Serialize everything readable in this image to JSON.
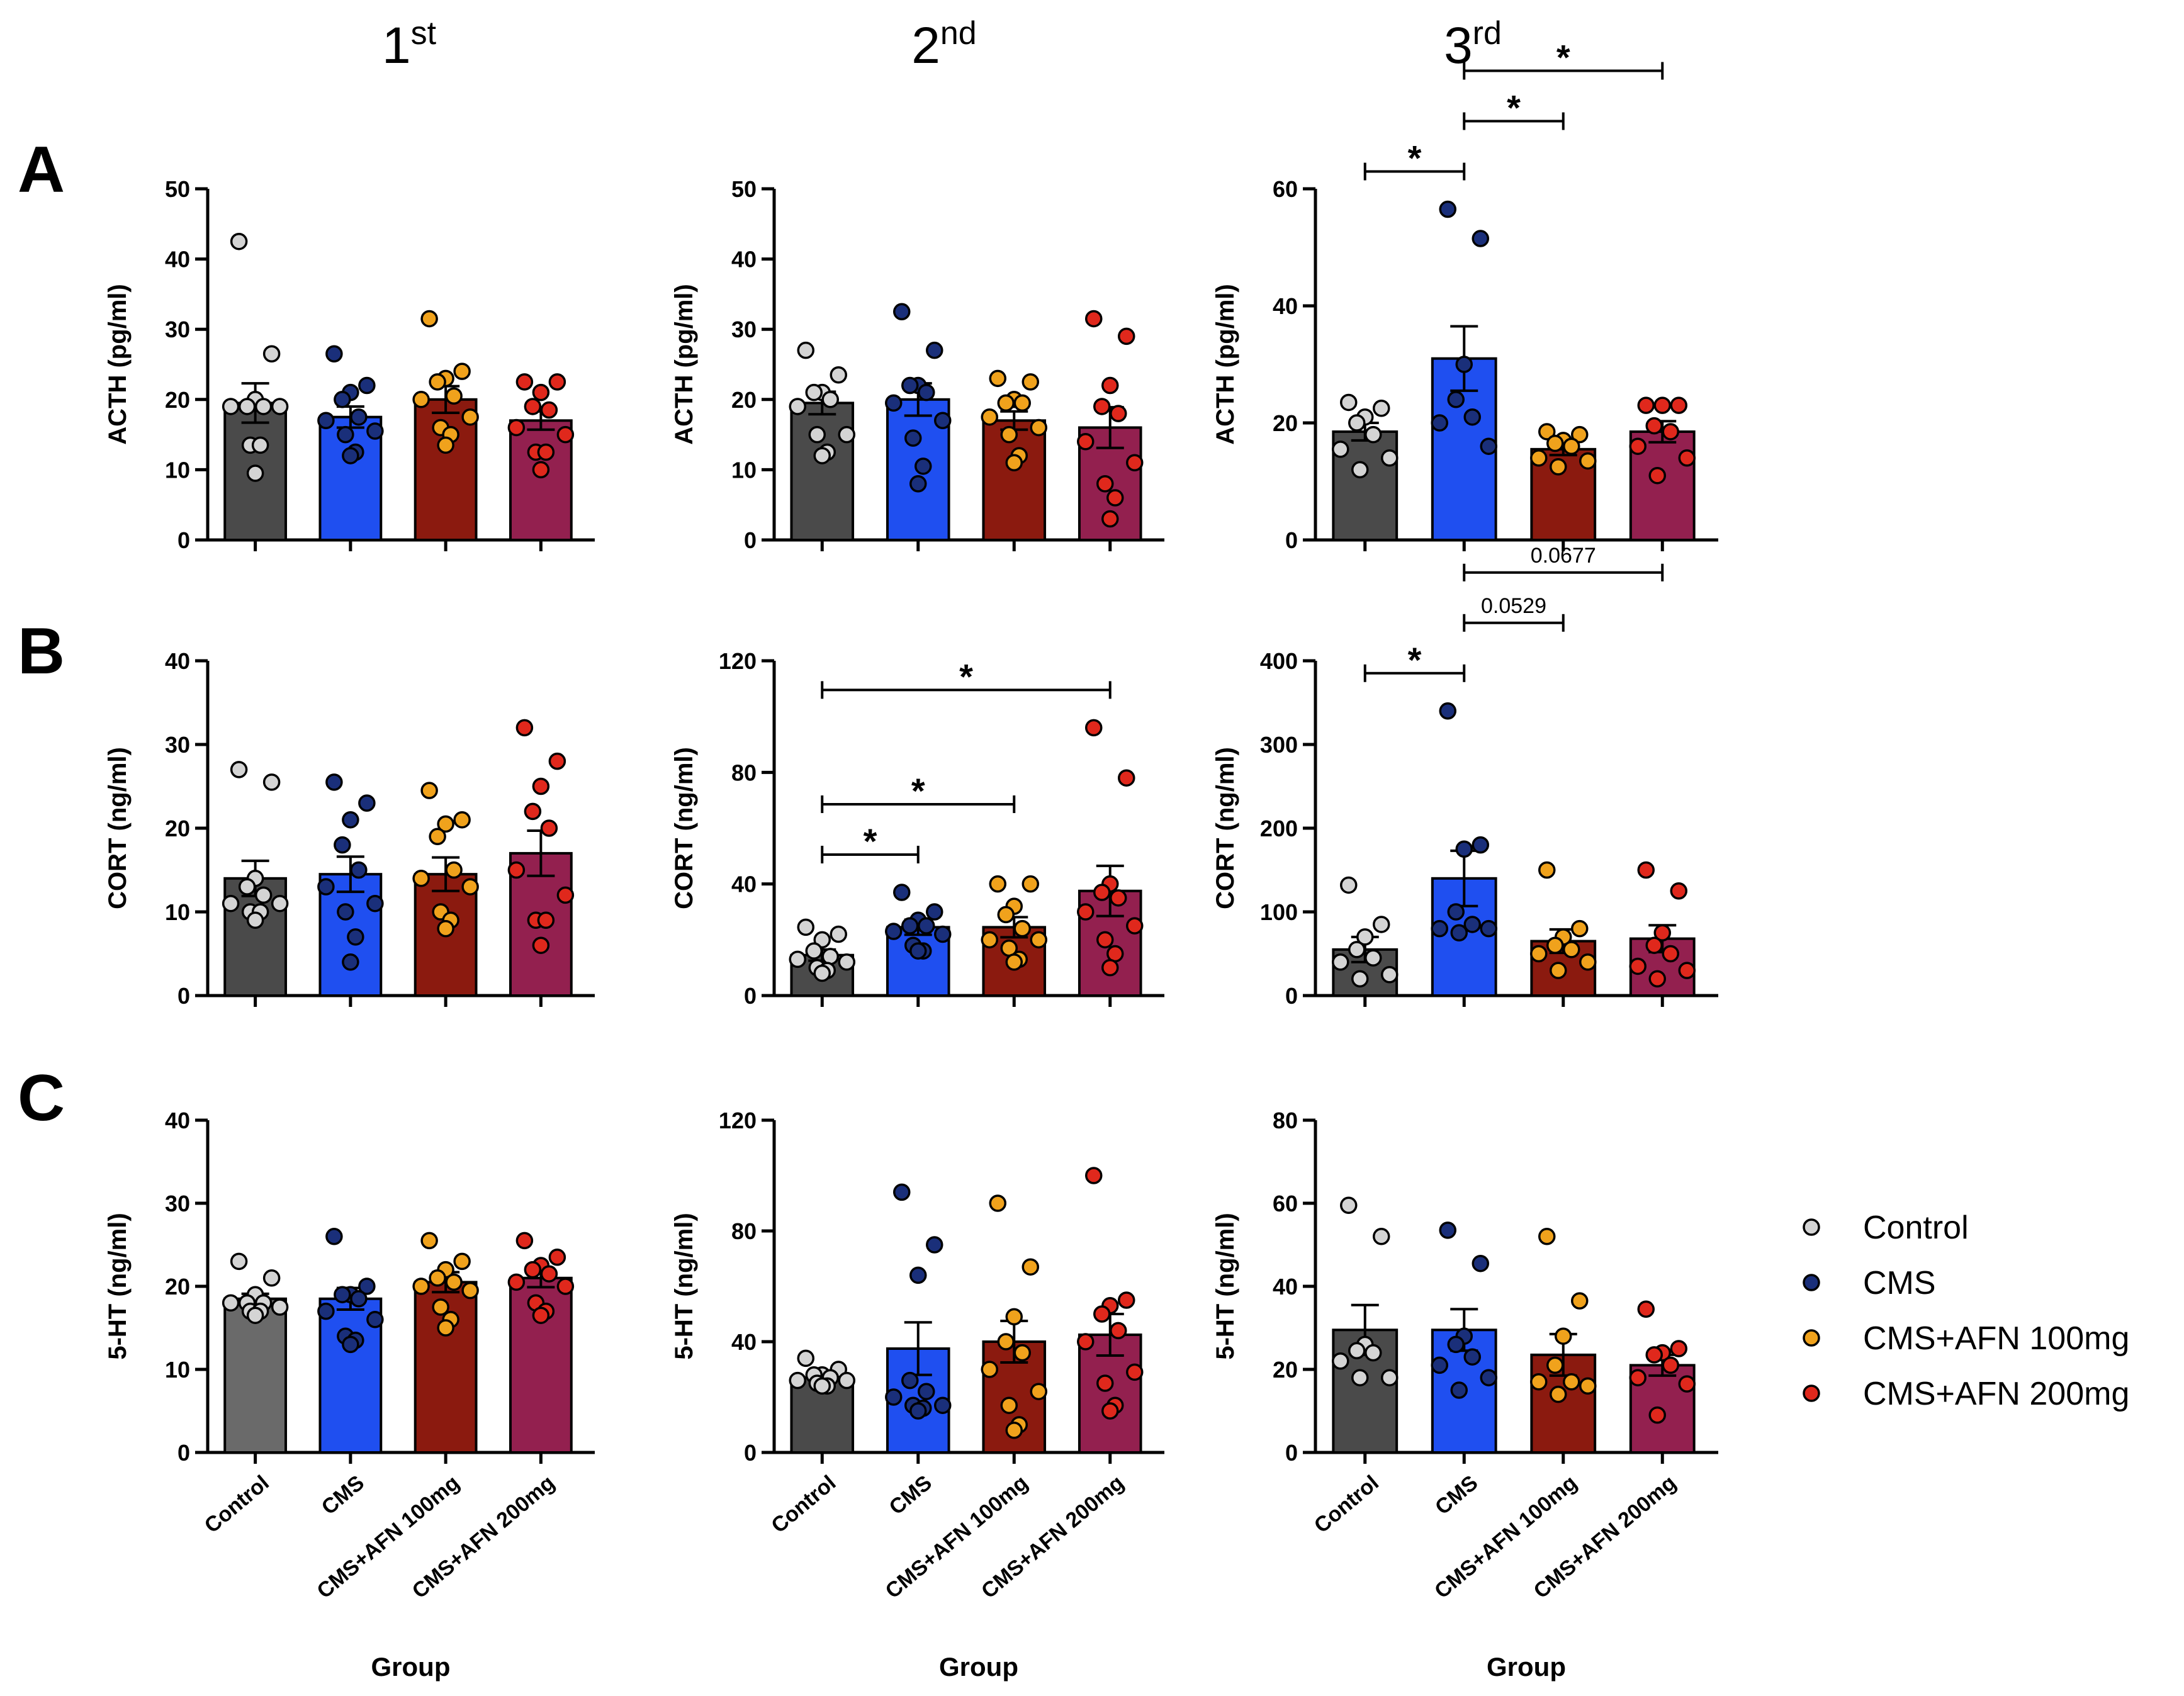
{
  "figure": {
    "columns": [
      {
        "main": "1",
        "sup": "st"
      },
      {
        "main": "2",
        "sup": "nd"
      },
      {
        "main": "3",
        "sup": "rd"
      }
    ],
    "rows": [
      "A",
      "B",
      "C"
    ]
  },
  "groups": [
    "Control",
    "CMS",
    "CMS+AFN 100mg",
    "CMS+AFN 200mg"
  ],
  "colors": {
    "bars": [
      "#4a4a4a",
      "#1f4ff0",
      "#8b1a0f",
      "#93204f"
    ],
    "bar_control_c1": "#6a6a6a",
    "dots": [
      "#d4d4d4",
      "#1a2f7a",
      "#f0a21c",
      "#e0281c"
    ]
  },
  "legend": [
    "Control",
    "CMS",
    "CMS+AFN 100mg",
    "CMS+AFN 200mg"
  ],
  "chart_data": [
    {
      "type": "bar",
      "row": "A",
      "col": 0,
      "title": "",
      "ylabel": "ACTH (pg/ml)",
      "ylim": [
        0,
        50
      ],
      "yticks": [
        0,
        10,
        20,
        30,
        40,
        50
      ],
      "xlabel": "",
      "categories": [],
      "means": [
        19.5,
        17.5,
        20,
        17
      ],
      "sem": [
        2.8,
        1.5,
        1.9,
        1.3
      ],
      "points": [
        [
          42.5,
          26.5,
          20,
          19,
          19,
          19,
          19,
          13.5,
          13.5,
          9.5
        ],
        [
          26.5,
          22,
          21,
          20,
          17.5,
          17,
          15.5,
          15,
          12.5,
          12
        ],
        [
          31.5,
          24,
          23,
          22.5,
          20.5,
          20,
          17.5,
          16,
          15,
          13.5
        ],
        [
          22.5,
          22.5,
          21,
          19,
          18.5,
          16,
          15,
          12.5,
          12.5,
          10
        ]
      ],
      "significance": []
    },
    {
      "type": "bar",
      "row": "A",
      "col": 1,
      "title": "",
      "ylabel": "ACTH (pg/ml)",
      "ylim": [
        0,
        50
      ],
      "yticks": [
        0,
        10,
        20,
        30,
        40,
        50
      ],
      "xlabel": "",
      "categories": [],
      "means": [
        19.5,
        20,
        17,
        16
      ],
      "sem": [
        1.6,
        2.3,
        1.3,
        2.9
      ],
      "points": [
        [
          27,
          23.5,
          21,
          21,
          20,
          19,
          15,
          15,
          12.5,
          12
        ],
        [
          32.5,
          27,
          22,
          22,
          21,
          19.5,
          17,
          14.5,
          10.5,
          8
        ],
        [
          23,
          22.5,
          20,
          19.5,
          19.5,
          17.5,
          16,
          15,
          12,
          11
        ],
        [
          31.5,
          29,
          22,
          19,
          18,
          14,
          11,
          8,
          6,
          3
        ]
      ],
      "significance": []
    },
    {
      "type": "bar",
      "row": "A",
      "col": 2,
      "title": "",
      "ylabel": "ACTH (pg/ml)",
      "ylim": [
        0,
        60
      ],
      "yticks": [
        0,
        20,
        40,
        60
      ],
      "xlabel": "",
      "categories": [],
      "means": [
        18.5,
        31,
        15.5,
        18.5
      ],
      "sem": [
        1.5,
        5.5,
        1,
        1.8
      ],
      "points": [
        [
          23.5,
          22.5,
          21,
          20,
          18,
          15.5,
          14,
          12
        ],
        [
          56.5,
          51.5,
          30,
          24,
          21,
          20,
          16
        ],
        [
          18.5,
          18,
          17,
          16.5,
          16,
          14,
          13.5,
          12.5
        ],
        [
          23,
          23,
          23,
          19.5,
          18.5,
          16,
          14,
          11
        ]
      ],
      "significance": [
        {
          "from": 0,
          "to": 1,
          "label": "*"
        },
        {
          "from": 1,
          "to": 2,
          "label": "*"
        },
        {
          "from": 1,
          "to": 3,
          "label": "*"
        }
      ]
    },
    {
      "type": "bar",
      "row": "B",
      "col": 0,
      "title": "",
      "ylabel": "CORT (ng/ml)",
      "ylim": [
        0,
        40
      ],
      "yticks": [
        0,
        10,
        20,
        30,
        40
      ],
      "xlabel": "",
      "categories": [],
      "means": [
        14,
        14.5,
        14.5,
        17
      ],
      "sem": [
        2.1,
        2.1,
        2,
        2.7
      ],
      "points": [
        [
          27,
          25.5,
          14,
          13,
          12,
          11,
          11,
          10,
          10,
          9
        ],
        [
          25.5,
          23,
          21,
          18,
          15,
          13,
          11,
          10,
          7,
          4
        ],
        [
          24.5,
          21,
          20.5,
          19,
          15,
          14,
          13,
          10,
          9,
          8
        ],
        [
          32,
          28,
          25,
          22,
          20,
          15,
          12,
          9,
          9,
          6
        ]
      ],
      "significance": []
    },
    {
      "type": "bar",
      "row": "B",
      "col": 1,
      "title": "",
      "ylabel": "CORT (ng/ml)",
      "ylim": [
        0,
        120
      ],
      "yticks": [
        0,
        40,
        80,
        120
      ],
      "xlabel": "",
      "categories": [],
      "means": [
        14.5,
        24.5,
        24.5,
        37.5
      ],
      "sem": [
        2,
        2.7,
        3.6,
        9
      ],
      "points": [
        [
          24.5,
          22,
          20,
          16,
          14,
          13,
          12,
          10,
          9,
          8
        ],
        [
          37,
          30,
          27,
          25,
          25,
          23,
          22,
          18,
          16,
          16
        ],
        [
          40,
          40,
          32,
          29,
          24,
          20,
          20,
          17,
          13,
          12
        ],
        [
          96,
          78,
          40,
          37,
          35,
          30,
          25,
          20,
          15,
          10
        ]
      ],
      "significance": [
        {
          "from": 0,
          "to": 1,
          "label": "*"
        },
        {
          "from": 0,
          "to": 2,
          "label": "*"
        },
        {
          "from": 0,
          "to": 3,
          "label": "*"
        }
      ]
    },
    {
      "type": "bar",
      "row": "B",
      "col": 2,
      "title": "",
      "ylabel": "CORT (ng/ml)",
      "ylim": [
        0,
        400
      ],
      "yticks": [
        0,
        100,
        200,
        300,
        400
      ],
      "xlabel": "",
      "categories": [],
      "means": [
        55,
        140,
        65,
        68
      ],
      "sem": [
        15,
        33,
        14,
        16
      ],
      "points": [
        [
          132,
          85,
          70,
          55,
          45,
          40,
          25,
          20
        ],
        [
          340,
          180,
          175,
          100,
          85,
          80,
          80,
          75
        ],
        [
          150,
          80,
          70,
          60,
          55,
          50,
          40,
          30
        ],
        [
          150,
          125,
          75,
          60,
          50,
          35,
          30,
          20
        ]
      ],
      "significance": [
        {
          "from": 0,
          "to": 1,
          "label": "*"
        },
        {
          "from": 1,
          "to": 2,
          "label": "0.0529"
        },
        {
          "from": 1,
          "to": 3,
          "label": "0.0677"
        }
      ]
    },
    {
      "type": "bar",
      "row": "C",
      "col": 0,
      "title": "",
      "ylabel": "5-HT (ng/ml)",
      "ylim": [
        0,
        40
      ],
      "yticks": [
        0,
        10,
        20,
        30,
        40
      ],
      "xlabel": "Group",
      "categories": [
        "Control",
        "CMS",
        "CMS+AFN 100mg",
        "CMS+AFN 200mg"
      ],
      "means": [
        18.5,
        18.5,
        20.5,
        21
      ],
      "sem": [
        0.6,
        1.3,
        1.2,
        1.1
      ],
      "points": [
        [
          23,
          21,
          19,
          18,
          18,
          18,
          17.5,
          17,
          17,
          16.5
        ],
        [
          26,
          20,
          19,
          19,
          18.5,
          17,
          16,
          14,
          13.5,
          13
        ],
        [
          25.5,
          23,
          22,
          21,
          20.5,
          20,
          19.5,
          17.5,
          16,
          15
        ],
        [
          25.5,
          23.5,
          22.5,
          22,
          21.5,
          20.5,
          20,
          18,
          17,
          16.5
        ]
      ],
      "significance": []
    },
    {
      "type": "bar",
      "row": "C",
      "col": 1,
      "title": "",
      "ylabel": "5-HT (ng/ml)",
      "ylim": [
        0,
        120
      ],
      "yticks": [
        0,
        40,
        80,
        120
      ],
      "xlabel": "Group",
      "categories": [
        "Control",
        "CMS",
        "CMS+AFN 100mg",
        "CMS+AFN 200mg"
      ],
      "means": [
        27,
        37.5,
        40,
        42.5
      ],
      "sem": [
        1,
        9.5,
        7.5,
        7.5
      ],
      "points": [
        [
          34,
          30,
          28,
          28,
          27,
          26,
          26,
          25,
          24,
          24
        ],
        [
          94,
          75,
          64,
          26,
          22,
          20,
          17,
          17,
          16,
          15
        ],
        [
          90,
          67,
          49,
          40,
          36,
          30,
          22,
          17,
          10,
          8
        ],
        [
          100,
          55,
          53,
          50,
          44,
          40,
          29,
          25,
          17,
          15
        ]
      ],
      "significance": []
    },
    {
      "type": "bar",
      "row": "C",
      "col": 2,
      "title": "",
      "ylabel": "5-HT (ng/ml)",
      "ylim": [
        0,
        80
      ],
      "yticks": [
        0,
        20,
        40,
        60,
        80
      ],
      "xlabel": "Group",
      "categories": [
        "Control",
        "CMS",
        "CMS+AFN 100mg",
        "CMS+AFN 200mg"
      ],
      "means": [
        29.5,
        29.5,
        23.5,
        21
      ],
      "sem": [
        6,
        5,
        5,
        2.5
      ],
      "points": [
        [
          59.5,
          52,
          26,
          24.5,
          24,
          22,
          18,
          18
        ],
        [
          53.5,
          45.5,
          28,
          26,
          23,
          21,
          18,
          15
        ],
        [
          52,
          36.5,
          28,
          21,
          17,
          17,
          16,
          14
        ],
        [
          34.5,
          25,
          24,
          23.5,
          21,
          18,
          16.5,
          9
        ]
      ],
      "significance": []
    }
  ]
}
